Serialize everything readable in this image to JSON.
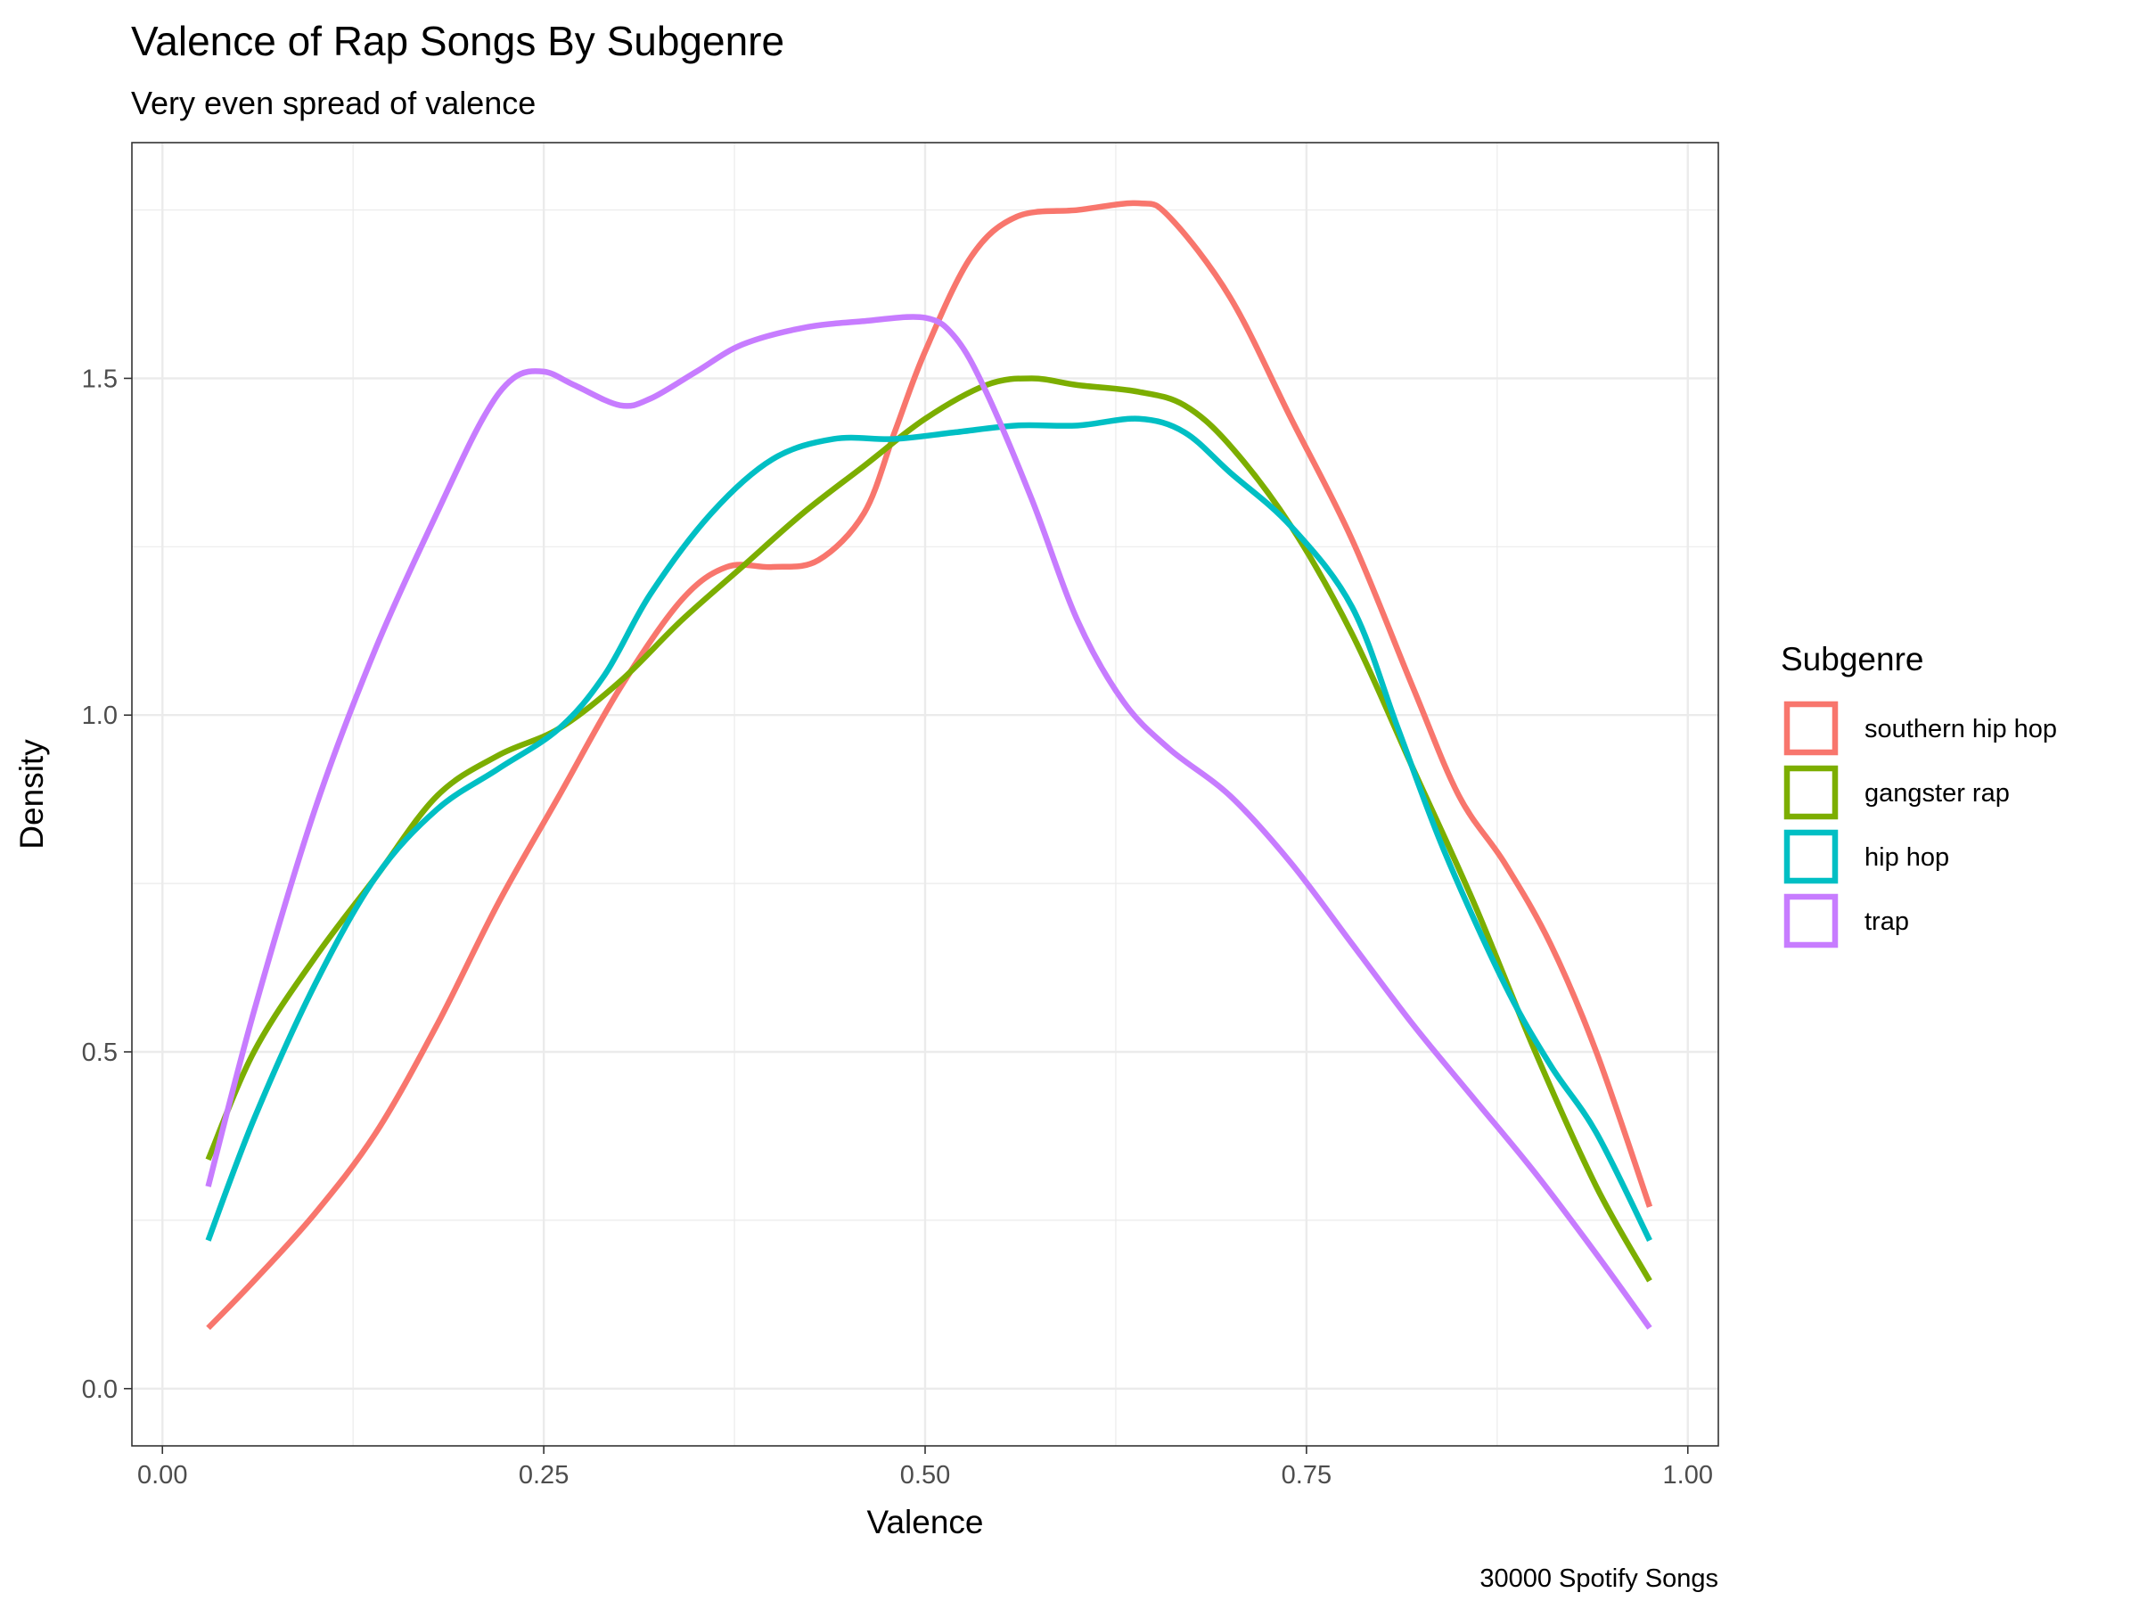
{
  "chart_data": {
    "type": "line",
    "title": "Valence of Rap Songs By Subgenre",
    "subtitle": "Very even spread of valence",
    "xlabel": "Valence",
    "ylabel": "Density",
    "caption": "30000 Spotify Songs",
    "xlim": [
      -0.02,
      1.02
    ],
    "ylim": [
      -0.085,
      1.85
    ],
    "x_ticks": [
      0.0,
      0.25,
      0.5,
      0.75,
      1.0
    ],
    "x_tick_labels": [
      "0.00",
      "0.25",
      "0.50",
      "0.75",
      "1.00"
    ],
    "x_minor": [
      0.125,
      0.375,
      0.625,
      0.875
    ],
    "y_ticks": [
      0.0,
      0.5,
      1.0,
      1.5
    ],
    "y_tick_labels": [
      "0.0",
      "0.5",
      "1.0",
      "1.5"
    ],
    "y_minor": [
      0.25,
      0.75,
      1.25,
      1.75
    ],
    "grid": true,
    "legend": {
      "title": "Subgenre",
      "position": "right"
    },
    "series": [
      {
        "name": "southern hip hop",
        "color": "#F8766D",
        "points": [
          [
            0.03,
            0.09
          ],
          [
            0.06,
            0.16
          ],
          [
            0.1,
            0.26
          ],
          [
            0.14,
            0.38
          ],
          [
            0.18,
            0.54
          ],
          [
            0.22,
            0.72
          ],
          [
            0.26,
            0.88
          ],
          [
            0.3,
            1.04
          ],
          [
            0.34,
            1.17
          ],
          [
            0.37,
            1.22
          ],
          [
            0.4,
            1.22
          ],
          [
            0.43,
            1.23
          ],
          [
            0.46,
            1.3
          ],
          [
            0.48,
            1.42
          ],
          [
            0.5,
            1.54
          ],
          [
            0.53,
            1.68
          ],
          [
            0.56,
            1.74
          ],
          [
            0.6,
            1.75
          ],
          [
            0.64,
            1.76
          ],
          [
            0.66,
            1.74
          ],
          [
            0.7,
            1.62
          ],
          [
            0.74,
            1.44
          ],
          [
            0.78,
            1.26
          ],
          [
            0.82,
            1.04
          ],
          [
            0.85,
            0.88
          ],
          [
            0.88,
            0.78
          ],
          [
            0.91,
            0.66
          ],
          [
            0.94,
            0.5
          ],
          [
            0.975,
            0.27
          ]
        ]
      },
      {
        "name": "gangster rap",
        "color": "#7CAE00",
        "points": [
          [
            0.03,
            0.34
          ],
          [
            0.06,
            0.5
          ],
          [
            0.1,
            0.64
          ],
          [
            0.14,
            0.76
          ],
          [
            0.18,
            0.88
          ],
          [
            0.22,
            0.94
          ],
          [
            0.26,
            0.98
          ],
          [
            0.3,
            1.05
          ],
          [
            0.34,
            1.14
          ],
          [
            0.38,
            1.22
          ],
          [
            0.42,
            1.3
          ],
          [
            0.46,
            1.37
          ],
          [
            0.5,
            1.44
          ],
          [
            0.54,
            1.49
          ],
          [
            0.57,
            1.5
          ],
          [
            0.6,
            1.49
          ],
          [
            0.64,
            1.48
          ],
          [
            0.67,
            1.46
          ],
          [
            0.7,
            1.4
          ],
          [
            0.74,
            1.28
          ],
          [
            0.78,
            1.12
          ],
          [
            0.82,
            0.92
          ],
          [
            0.86,
            0.72
          ],
          [
            0.9,
            0.5
          ],
          [
            0.94,
            0.3
          ],
          [
            0.975,
            0.16
          ]
        ]
      },
      {
        "name": "hip hop",
        "color": "#00BFC4",
        "points": [
          [
            0.03,
            0.22
          ],
          [
            0.06,
            0.4
          ],
          [
            0.1,
            0.6
          ],
          [
            0.14,
            0.76
          ],
          [
            0.18,
            0.86
          ],
          [
            0.22,
            0.92
          ],
          [
            0.26,
            0.98
          ],
          [
            0.29,
            1.06
          ],
          [
            0.32,
            1.18
          ],
          [
            0.36,
            1.3
          ],
          [
            0.4,
            1.38
          ],
          [
            0.44,
            1.41
          ],
          [
            0.48,
            1.41
          ],
          [
            0.52,
            1.42
          ],
          [
            0.56,
            1.43
          ],
          [
            0.6,
            1.43
          ],
          [
            0.64,
            1.44
          ],
          [
            0.67,
            1.42
          ],
          [
            0.7,
            1.36
          ],
          [
            0.74,
            1.28
          ],
          [
            0.78,
            1.16
          ],
          [
            0.81,
            0.98
          ],
          [
            0.84,
            0.8
          ],
          [
            0.88,
            0.6
          ],
          [
            0.91,
            0.48
          ],
          [
            0.94,
            0.38
          ],
          [
            0.975,
            0.22
          ]
        ]
      },
      {
        "name": "trap",
        "color": "#C77CFF",
        "points": [
          [
            0.03,
            0.3
          ],
          [
            0.06,
            0.56
          ],
          [
            0.1,
            0.86
          ],
          [
            0.14,
            1.1
          ],
          [
            0.18,
            1.3
          ],
          [
            0.21,
            1.44
          ],
          [
            0.23,
            1.5
          ],
          [
            0.25,
            1.51
          ],
          [
            0.27,
            1.49
          ],
          [
            0.3,
            1.46
          ],
          [
            0.32,
            1.47
          ],
          [
            0.35,
            1.51
          ],
          [
            0.38,
            1.55
          ],
          [
            0.42,
            1.575
          ],
          [
            0.46,
            1.585
          ],
          [
            0.5,
            1.59
          ],
          [
            0.52,
            1.56
          ],
          [
            0.54,
            1.48
          ],
          [
            0.57,
            1.32
          ],
          [
            0.6,
            1.14
          ],
          [
            0.63,
            1.02
          ],
          [
            0.66,
            0.95
          ],
          [
            0.7,
            0.88
          ],
          [
            0.74,
            0.78
          ],
          [
            0.78,
            0.66
          ],
          [
            0.82,
            0.54
          ],
          [
            0.86,
            0.43
          ],
          [
            0.9,
            0.32
          ],
          [
            0.94,
            0.2
          ],
          [
            0.975,
            0.09
          ]
        ]
      }
    ]
  }
}
